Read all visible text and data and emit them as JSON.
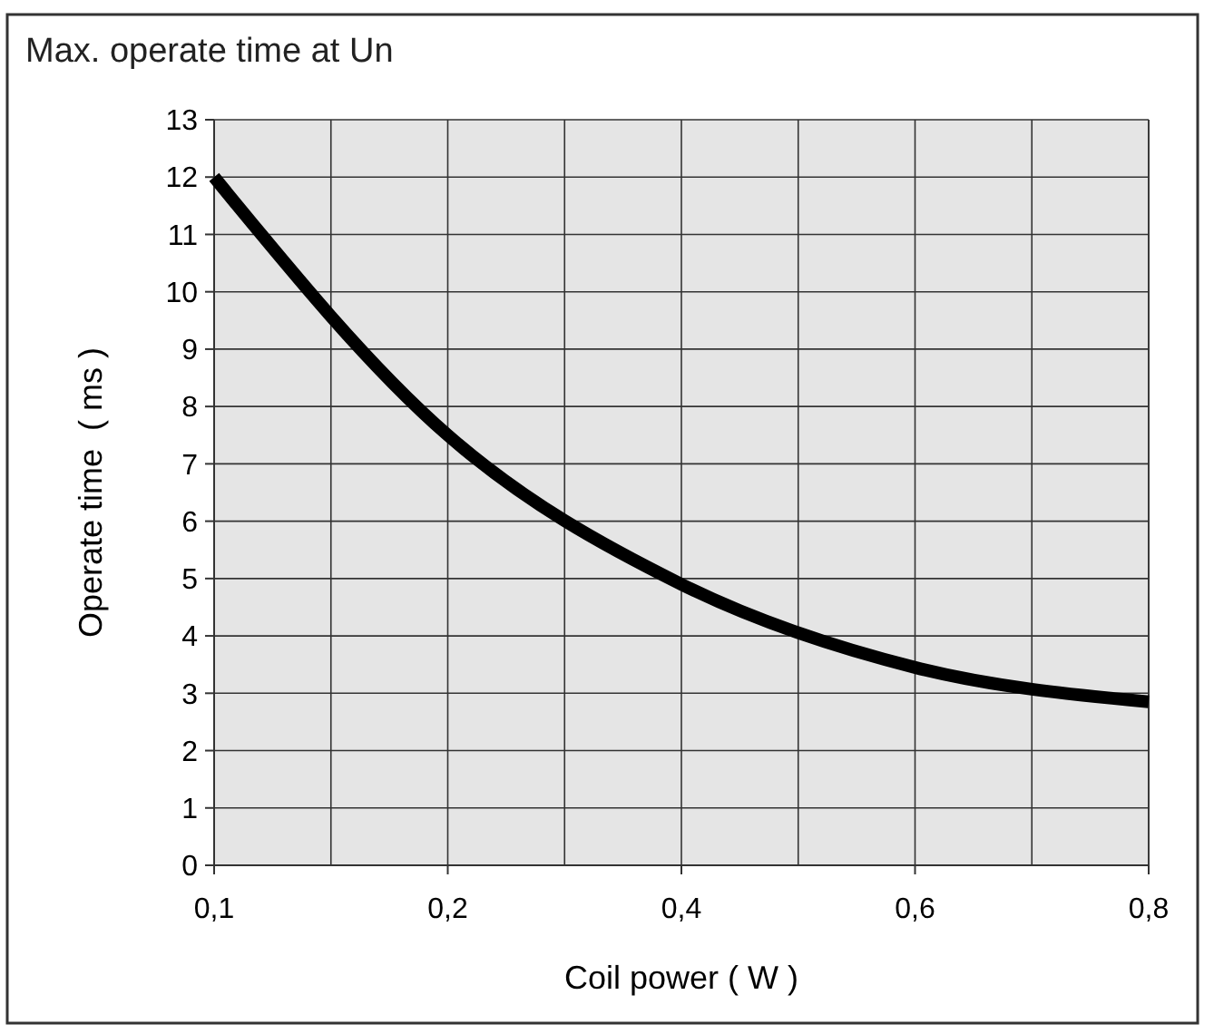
{
  "chart_data": {
    "type": "line",
    "title": "Max. operate time at Un",
    "xlabel": "Coil power ( W )",
    "ylabel": "Operate time  ( ms )",
    "categories": [
      "0,1",
      "0,2",
      "0,4",
      "0,6",
      "0,8"
    ],
    "series": [
      {
        "color": "#000000",
        "values": [
          12,
          7.5,
          4.9,
          3.45,
          2.85
        ]
      }
    ],
    "ylim": [
      0,
      13
    ],
    "yticks": [
      0,
      1,
      2,
      3,
      4,
      5,
      6,
      7,
      8,
      9,
      10,
      11,
      12,
      13
    ],
    "grid": true,
    "marker": "none",
    "line_style": "solid"
  }
}
